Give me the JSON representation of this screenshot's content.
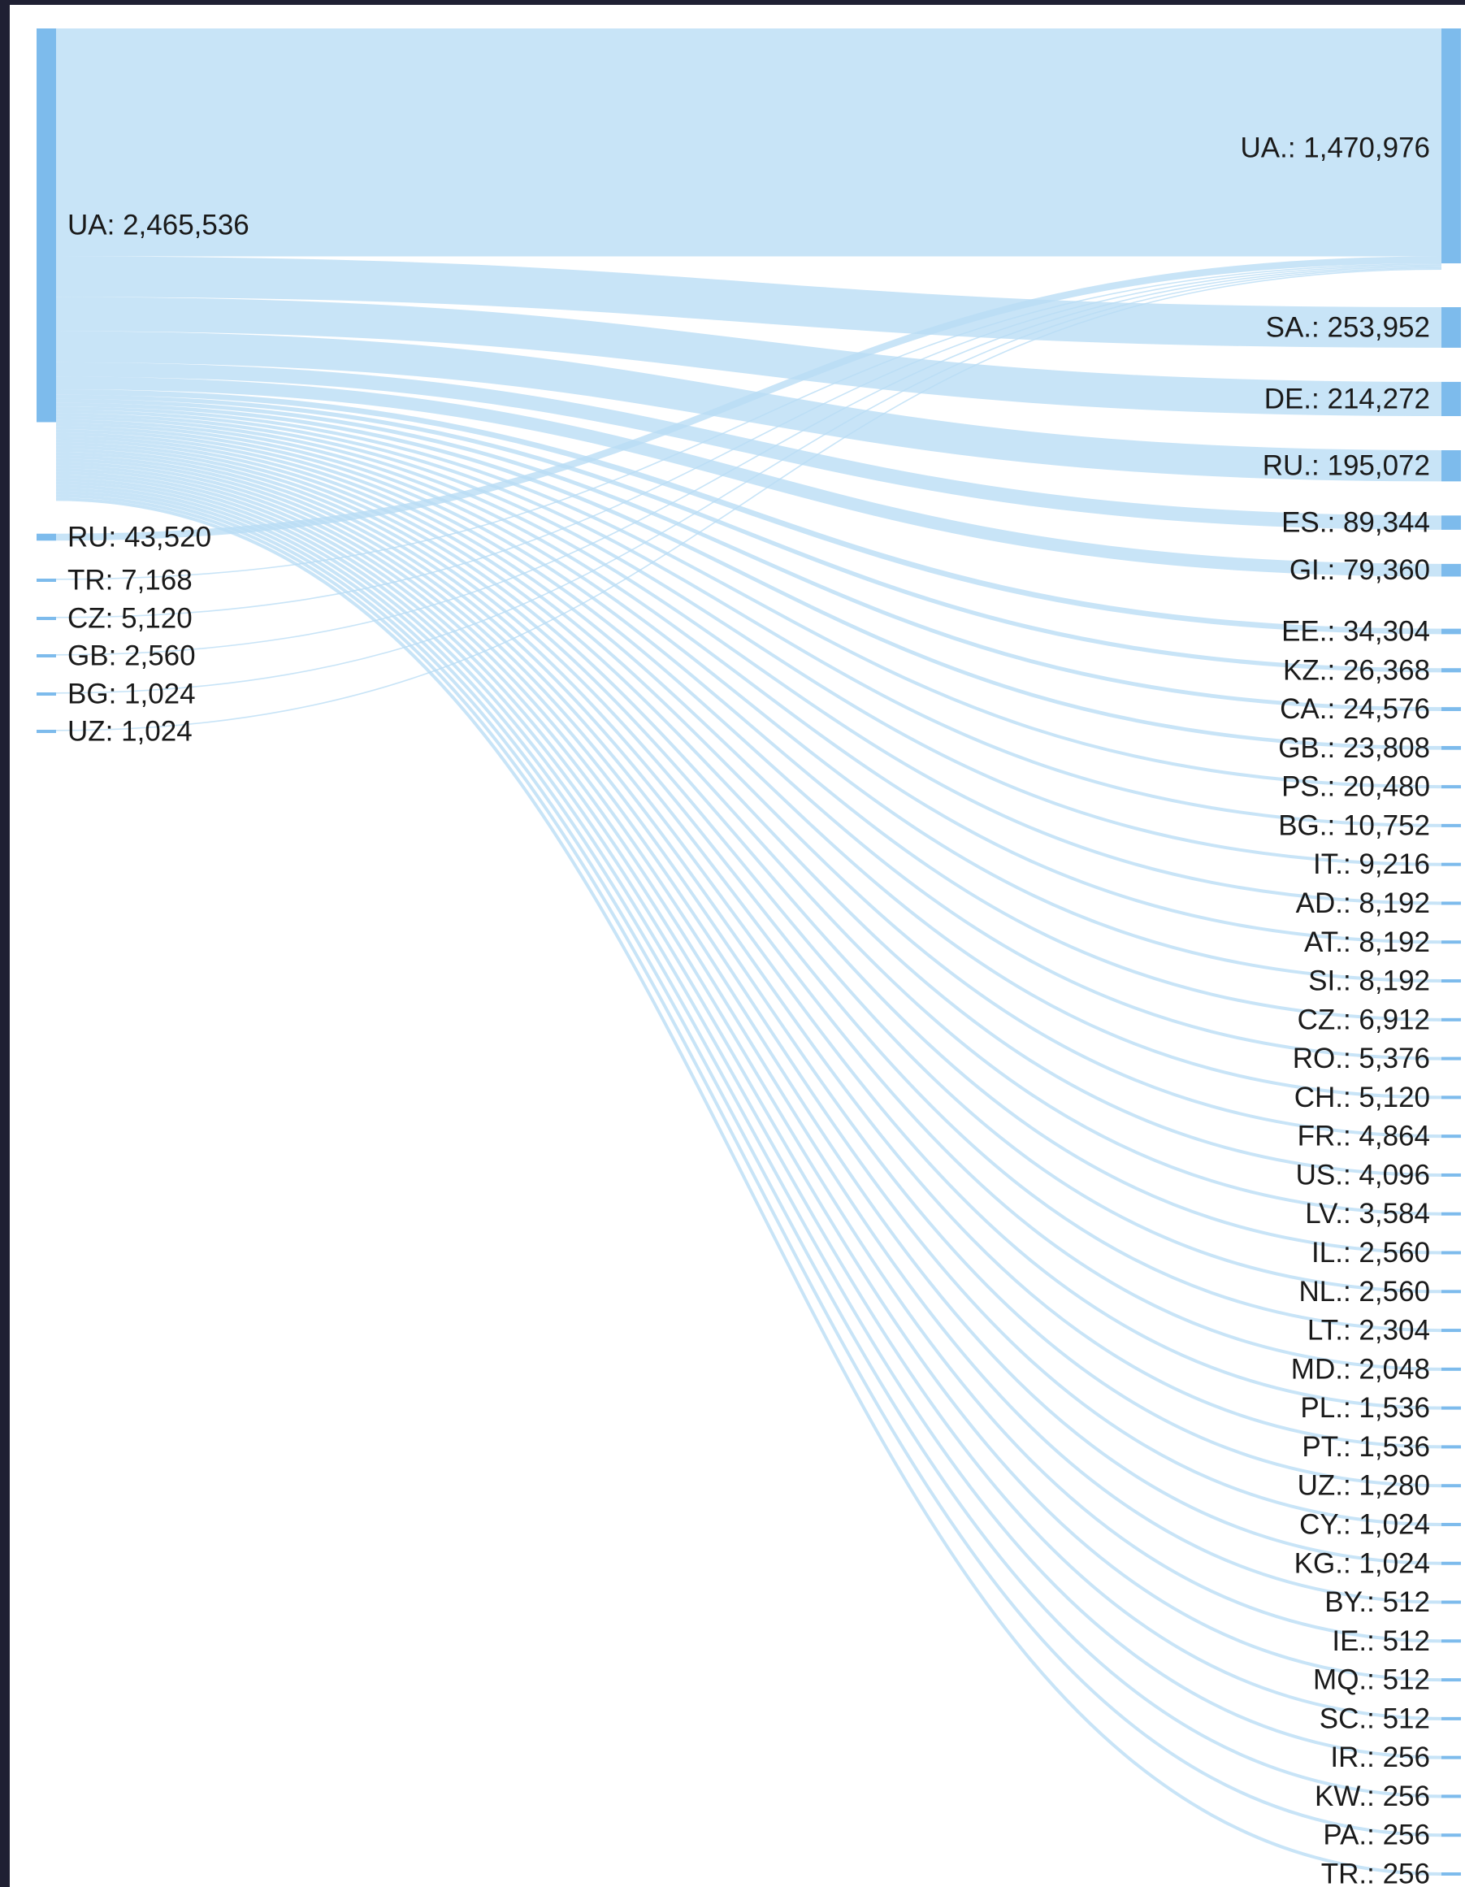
{
  "diagram": {
    "type": "sankey",
    "colors": {
      "node": "#7dbbec",
      "link": "#b9dcf5",
      "label": "#1a1a1a",
      "background": "#ffffff",
      "border": "#1f2033"
    },
    "sources": [
      {
        "label": "UA: 2,465,536",
        "value": 2465536
      },
      {
        "label": "RU: 43,520",
        "value": 43520
      },
      {
        "label": "TR: 7,168",
        "value": 7168
      },
      {
        "label": "CZ: 5,120",
        "value": 5120
      },
      {
        "label": "GB: 2,560",
        "value": 2560
      },
      {
        "label": "BG: 1,024",
        "value": 1024
      },
      {
        "label": "UZ: 1,024",
        "value": 1024
      }
    ],
    "targets": [
      {
        "label": "UA.: 1,470,976",
        "value": 1470976
      },
      {
        "label": "SA.: 253,952",
        "value": 253952
      },
      {
        "label": "DE.: 214,272",
        "value": 214272
      },
      {
        "label": "RU.: 195,072",
        "value": 195072
      },
      {
        "label": "ES.: 89,344",
        "value": 89344
      },
      {
        "label": "GI.: 79,360",
        "value": 79360
      },
      {
        "label": "EE.: 34,304",
        "value": 34304
      },
      {
        "label": "KZ.: 26,368",
        "value": 26368
      },
      {
        "label": "CA.: 24,576",
        "value": 24576
      },
      {
        "label": "GB.: 23,808",
        "value": 23808
      },
      {
        "label": "PS.: 20,480",
        "value": 20480
      },
      {
        "label": "BG.: 10,752",
        "value": 10752
      },
      {
        "label": "IT.: 9,216",
        "value": 9216
      },
      {
        "label": "AD.: 8,192",
        "value": 8192
      },
      {
        "label": "AT.: 8,192",
        "value": 8192
      },
      {
        "label": "SI.: 8,192",
        "value": 8192
      },
      {
        "label": "CZ.: 6,912",
        "value": 6912
      },
      {
        "label": "RO.: 5,376",
        "value": 5376
      },
      {
        "label": "CH.: 5,120",
        "value": 5120
      },
      {
        "label": "FR.: 4,864",
        "value": 4864
      },
      {
        "label": "US.: 4,096",
        "value": 4096
      },
      {
        "label": "LV.: 3,584",
        "value": 3584
      },
      {
        "label": "IL.: 2,560",
        "value": 2560
      },
      {
        "label": "NL.: 2,560",
        "value": 2560
      },
      {
        "label": "LT.: 2,304",
        "value": 2304
      },
      {
        "label": "MD.: 2,048",
        "value": 2048
      },
      {
        "label": "PL.: 1,536",
        "value": 1536
      },
      {
        "label": "PT.: 1,536",
        "value": 1536
      },
      {
        "label": "UZ.: 1,280",
        "value": 1280
      },
      {
        "label": "CY.: 1,024",
        "value": 1024
      },
      {
        "label": "KG.: 1,024",
        "value": 1024
      },
      {
        "label": "BY.: 512",
        "value": 512
      },
      {
        "label": "IE.: 512",
        "value": 512
      },
      {
        "label": "MQ.: 512",
        "value": 512
      },
      {
        "label": "SC.: 512",
        "value": 512
      },
      {
        "label": "IR.: 256",
        "value": 256
      },
      {
        "label": "KW.: 256",
        "value": 256
      },
      {
        "label": "PA.: 256",
        "value": 256
      },
      {
        "label": "TR.: 256",
        "value": 256
      }
    ]
  }
}
